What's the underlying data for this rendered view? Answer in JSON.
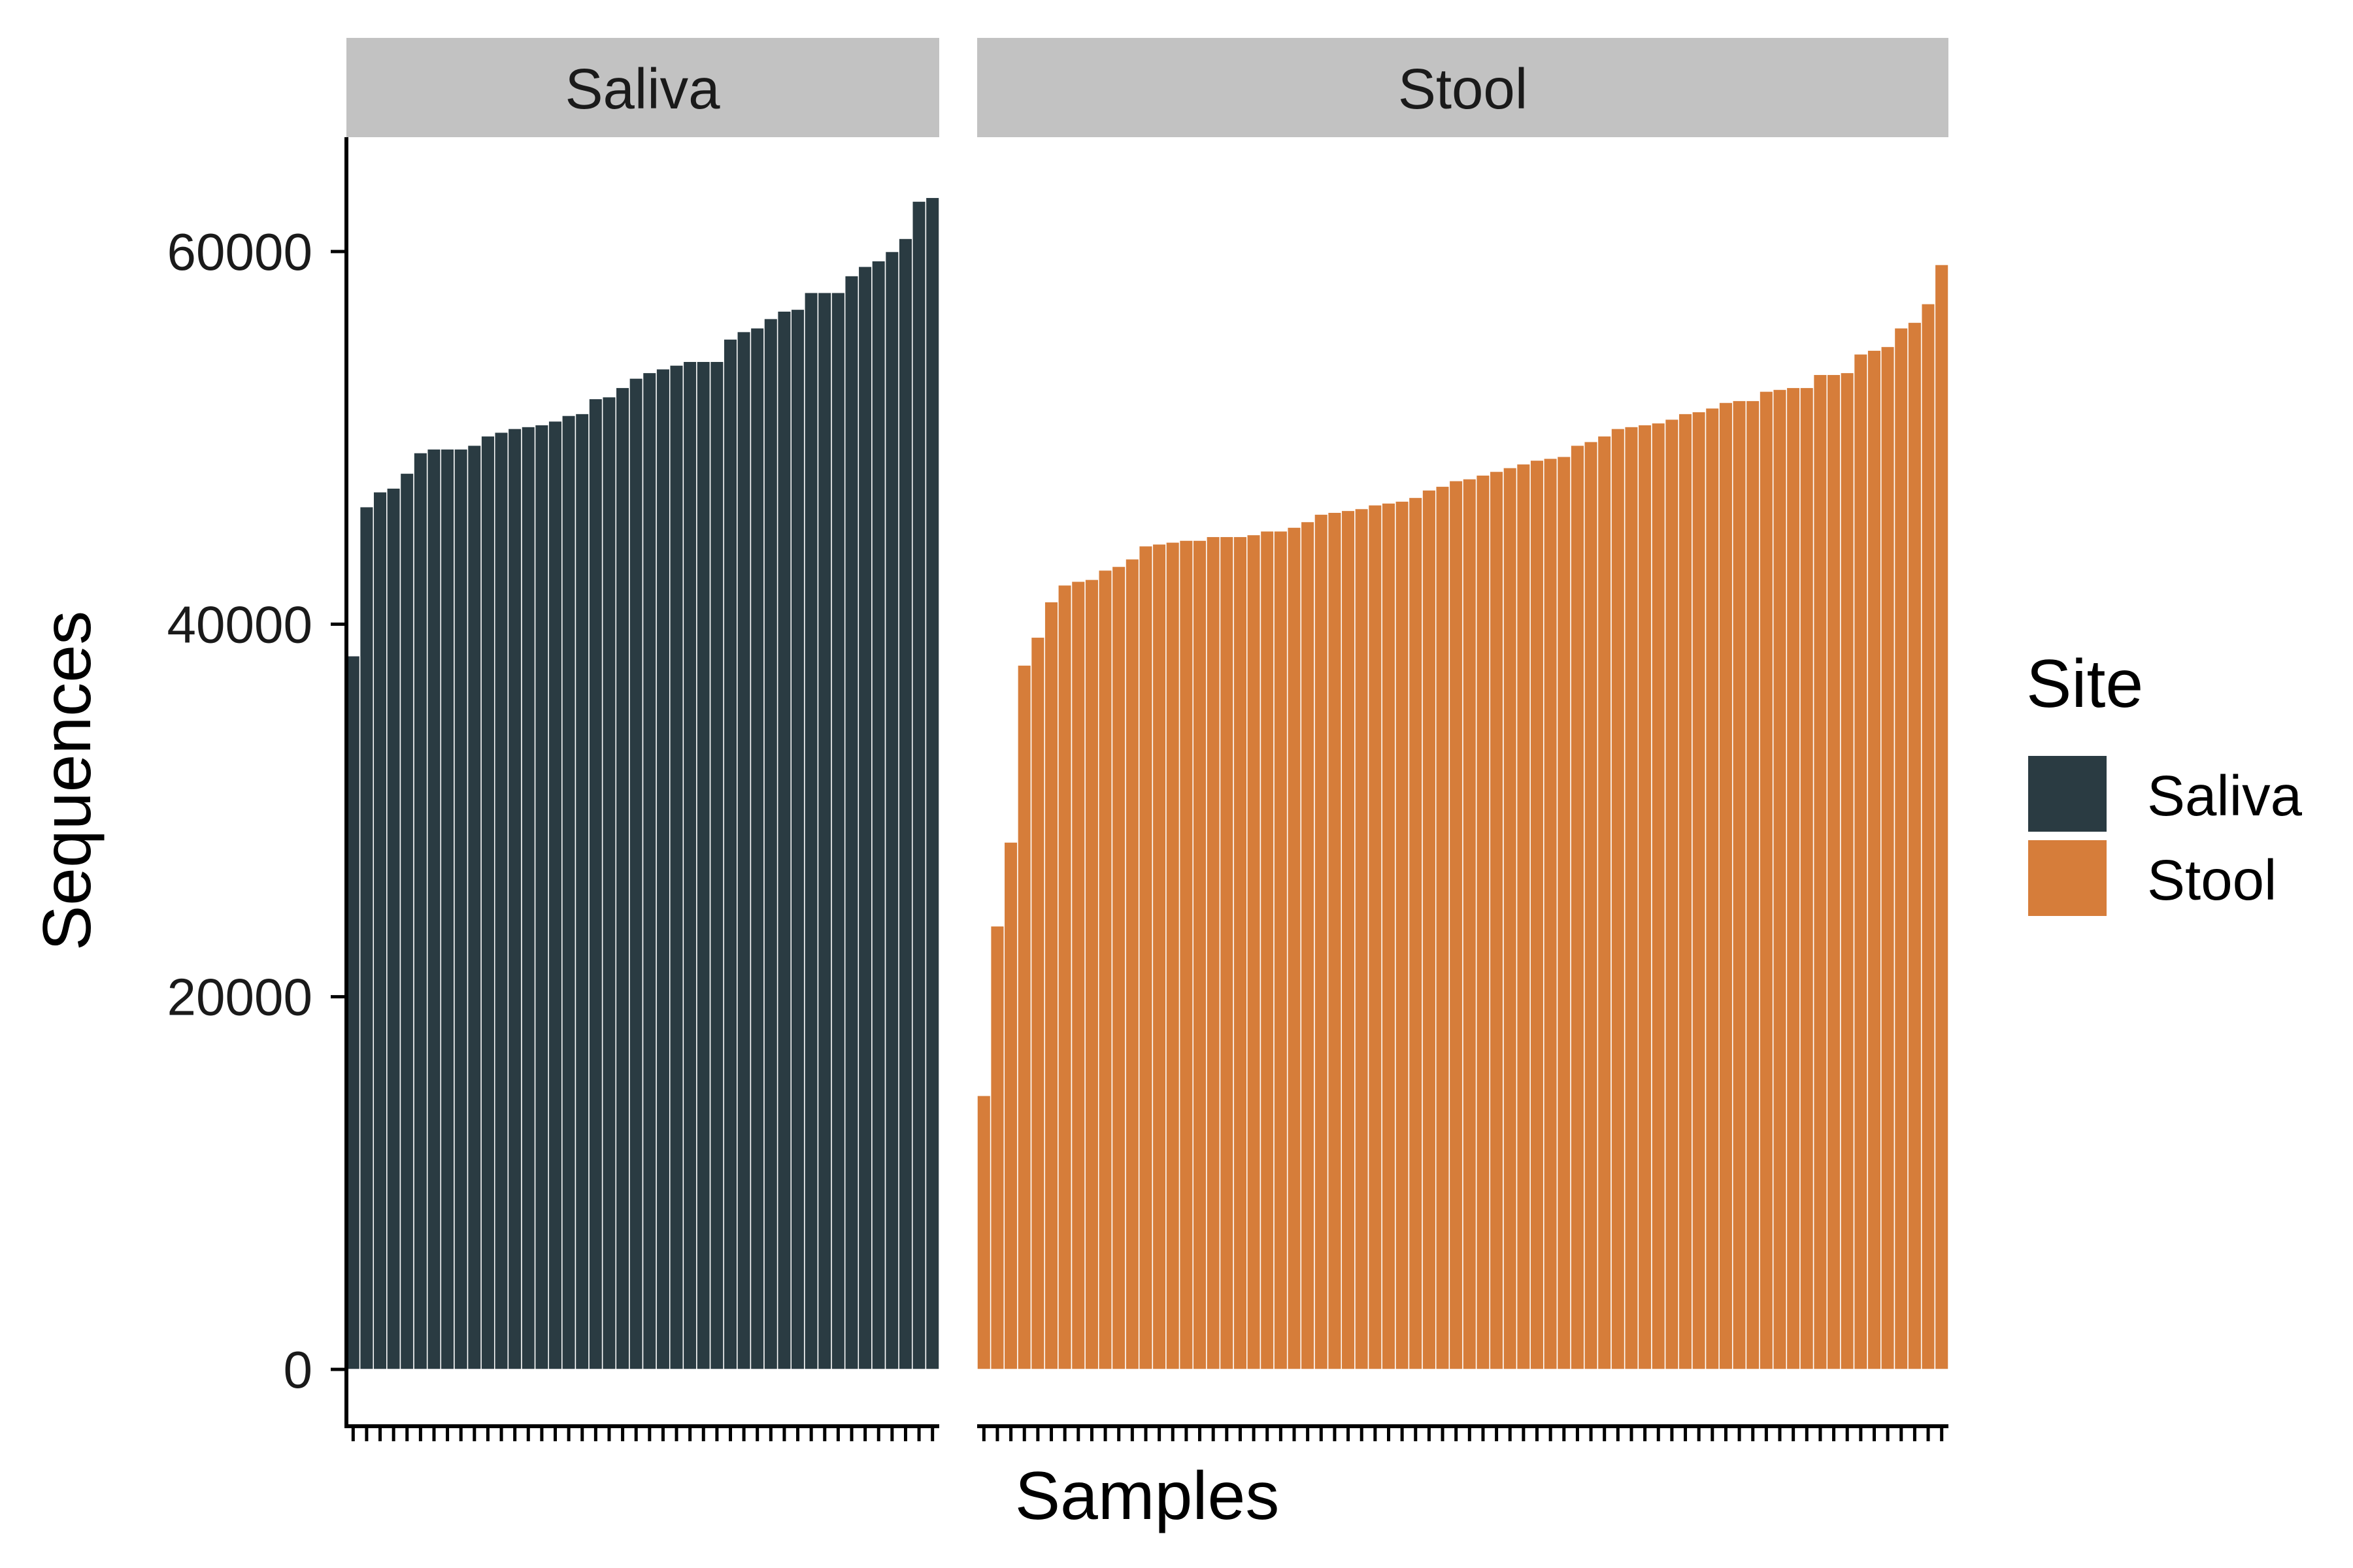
{
  "chart_data": {
    "type": "bar",
    "facets": [
      {
        "name": "Saliva",
        "color": "#2a3b42",
        "values": [
          38300,
          46300,
          47100,
          47300,
          48100,
          49200,
          49400,
          49400,
          49400,
          49600,
          50100,
          50300,
          50500,
          50600,
          50700,
          50900,
          51200,
          51300,
          52100,
          52200,
          52700,
          53200,
          53500,
          53700,
          53900,
          54100,
          54100,
          54100,
          55300,
          55700,
          55900,
          56400,
          56800,
          56900,
          57800,
          57800,
          57800,
          58700,
          59200,
          59500,
          60000,
          60700,
          62700,
          62900
        ]
      },
      {
        "name": "Stool",
        "color": "#d67d3a",
        "values": [
          14700,
          23800,
          28300,
          37800,
          39300,
          41200,
          42100,
          42300,
          42400,
          42900,
          43100,
          43500,
          44200,
          44300,
          44400,
          44500,
          44500,
          44700,
          44700,
          44700,
          44800,
          45000,
          45000,
          45200,
          45500,
          45900,
          46000,
          46100,
          46200,
          46400,
          46500,
          46600,
          46800,
          47200,
          47400,
          47700,
          47800,
          48000,
          48200,
          48400,
          48600,
          48800,
          48900,
          49000,
          49600,
          49800,
          50100,
          50500,
          50600,
          50700,
          50800,
          51000,
          51300,
          51400,
          51600,
          51900,
          52000,
          52000,
          52500,
          52600,
          52700,
          52700,
          53400,
          53400,
          53500,
          54500,
          54700,
          54900,
          55900,
          56200,
          57200,
          59300
        ]
      }
    ],
    "xlabel": "Samples",
    "ylabel": "Sequences",
    "ylim": [
      0,
      66000
    ],
    "yticks": [
      "0",
      "20000",
      "40000",
      "60000"
    ],
    "legend": {
      "title": "Site",
      "position": "right",
      "entries": [
        "Saliva",
        "Stool"
      ]
    },
    "grid": false
  }
}
